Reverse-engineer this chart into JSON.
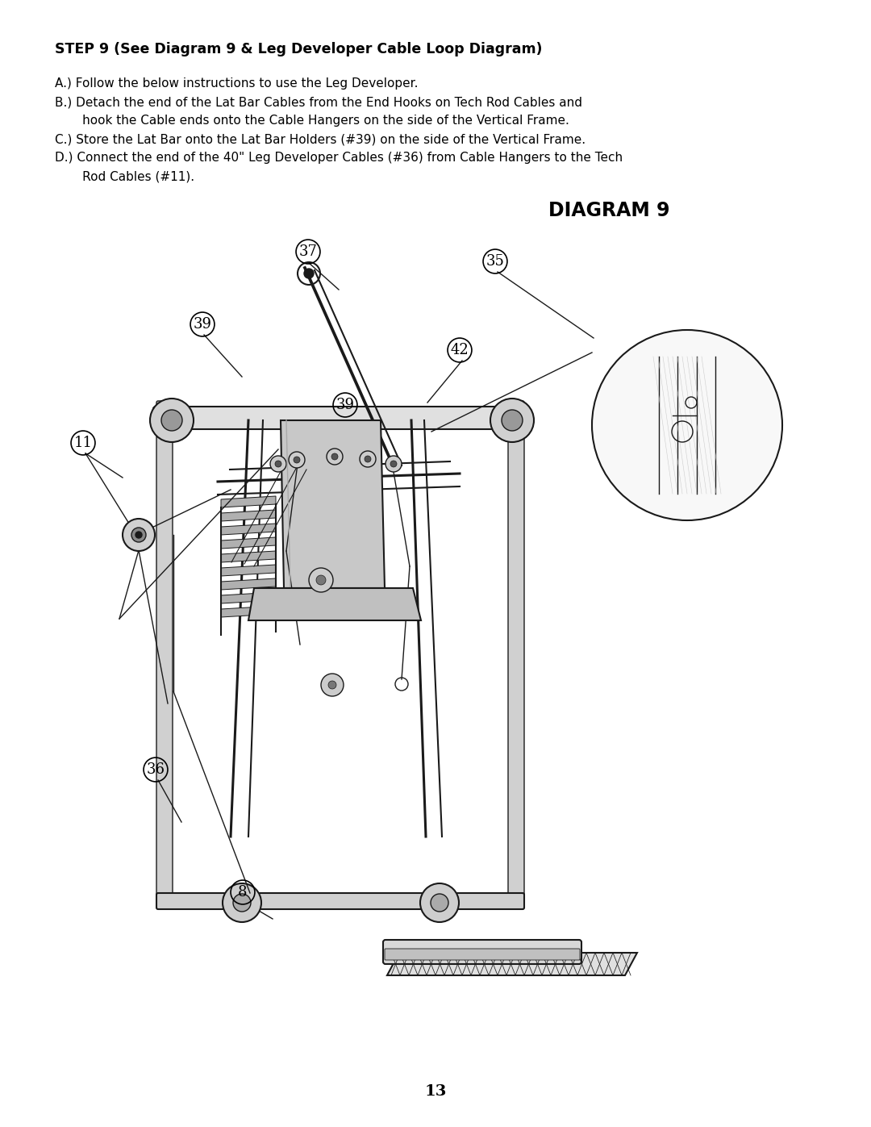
{
  "page_number": "13",
  "background_color": "#ffffff",
  "title": "STEP 9 (See Diagram 9 & Leg Developer Cable Loop Diagram)",
  "instr_a": "A.) Follow the below instructions to use the Leg Developer.",
  "instr_b1": "B.) Detach the end of the Lat Bar Cables from the End Hooks on Tech Rod Cables and",
  "instr_b2": "       hook the Cable ends onto the Cable Hangers on the side of the Vertical Frame.",
  "instr_c": "C.) Store the Lat Bar onto the Lat Bar Holders (#39) on the side of the Vertical Frame.",
  "instr_d1": "D.) Connect the end of the 40\" Leg Developer Cables (#36) from Cable Hangers to the Tech",
  "instr_d2": "       Rod Cables (#11).",
  "diagram_title": "DIAGRAM 9",
  "text_color": "#000000",
  "line_color": "#1a1a1a"
}
